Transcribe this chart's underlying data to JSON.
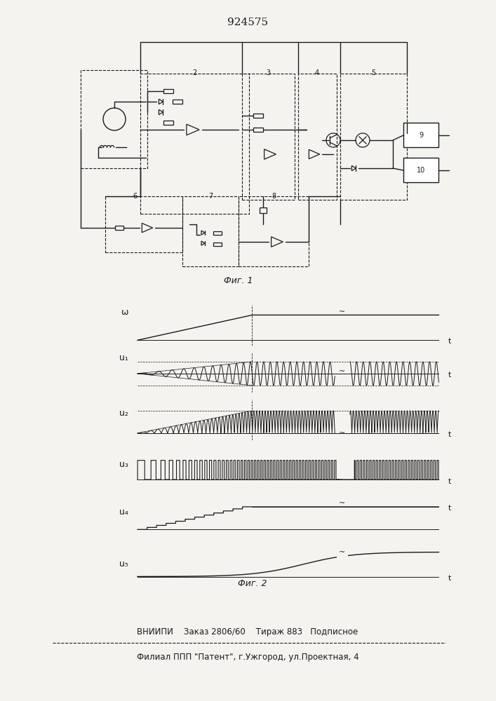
{
  "patent_number": "924575",
  "fig1_caption": "Фиг. 1",
  "fig2_caption": "Фиг. 2",
  "footer_line1": "ВНИИПИ    Заказ 2806/60    Тираж 883   Подписное",
  "footer_line2": "Филиал ППП \"Патент\", г.Ужгород, ул.Проектная, 4",
  "bg_color": "#f5f3ef",
  "line_color": "#1a1a1a",
  "t_label": "t",
  "fig_width": 7.07,
  "fig_height": 10.0
}
